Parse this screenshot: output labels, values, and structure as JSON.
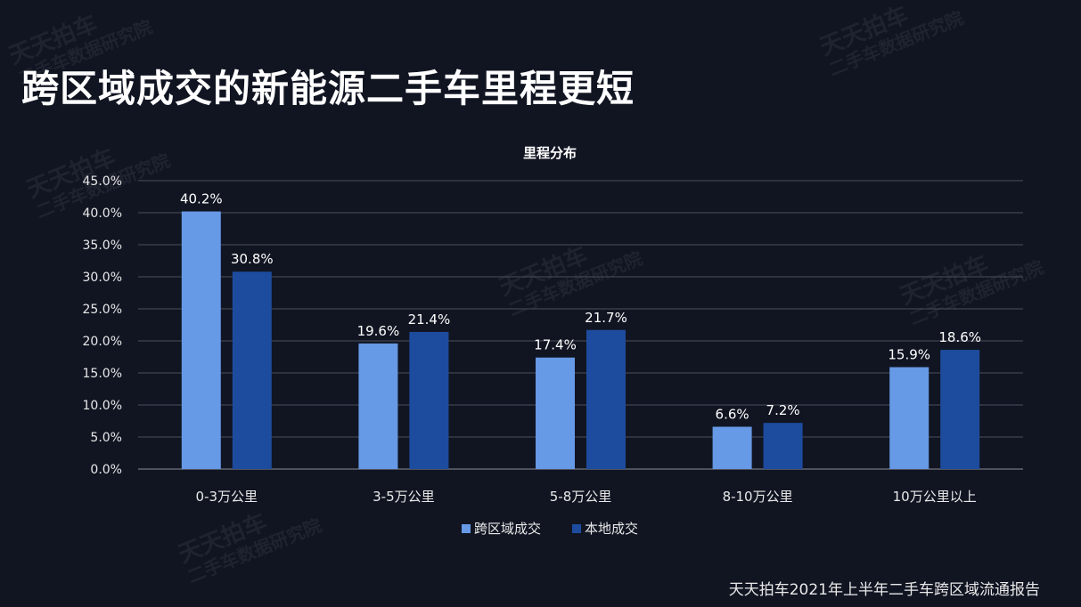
{
  "title": "跨区域成交的新能源二手车里程更短",
  "footer": "天天拍车2021年上半年二手车跨区域流通报告",
  "watermark": {
    "line1": "天天拍车",
    "line2": "二手车数据研究院"
  },
  "colors": {
    "background": "#111522",
    "series1": "#6699e6",
    "series2": "#1d4c9e",
    "grid": "#4a4e5a"
  },
  "chart_data": {
    "type": "bar",
    "title": "里程分布",
    "xlabel": "",
    "ylabel": "",
    "categories": [
      "0-3万公里",
      "3-5万公里",
      "5-8万公里",
      "8-10万公里",
      "10万公里以上"
    ],
    "series": [
      {
        "name": "跨区域成交",
        "values": [
          40.2,
          19.6,
          17.4,
          6.6,
          15.9
        ]
      },
      {
        "name": "本地成交",
        "values": [
          30.8,
          21.4,
          21.7,
          7.2,
          18.6
        ]
      }
    ],
    "ylim": [
      0,
      45
    ],
    "yticks": [
      0,
      5,
      10,
      15,
      20,
      25,
      30,
      35,
      40,
      45
    ],
    "value_suffix": "%",
    "grid": true,
    "legend_position": "bottom"
  }
}
